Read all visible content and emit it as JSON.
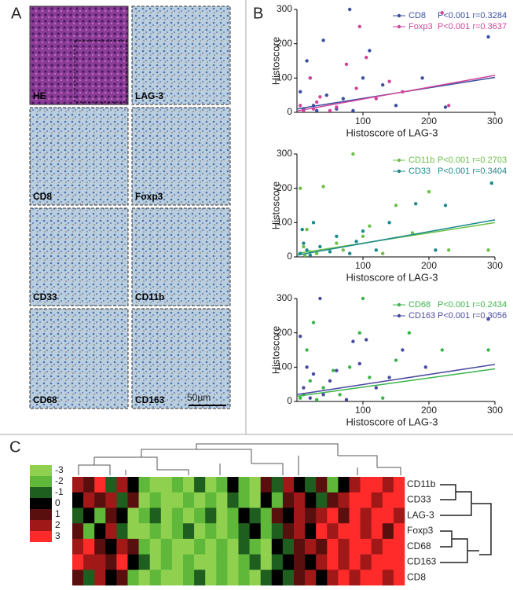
{
  "panel_labels": [
    "A",
    "B",
    "C"
  ],
  "micrographs": {
    "tiles": [
      {
        "label": "HE"
      },
      {
        "label": "LAG-3"
      },
      {
        "label": "CD8"
      },
      {
        "label": "Foxp3"
      },
      {
        "label": "CD33"
      },
      {
        "label": "CD11b"
      },
      {
        "label": "CD68"
      },
      {
        "label": "CD163"
      }
    ],
    "scale_bar": "50μm"
  },
  "chart_data": [
    {
      "type": "scatter",
      "ylabel": "Histoscore",
      "xlabel": "Histoscore of LAG-3",
      "xlim": [
        0,
        300
      ],
      "ylim": [
        0,
        300
      ],
      "xticks": [
        100,
        200,
        300
      ],
      "yticks": [
        0,
        100,
        200,
        300
      ],
      "series": [
        {
          "name": "CD8",
          "stat": "P<0.001 r=0.3284",
          "color": "#3a4fa0",
          "x": [
            5,
            10,
            15,
            20,
            25,
            30,
            40,
            45,
            60,
            70,
            80,
            85,
            100,
            110,
            130,
            150,
            190,
            225,
            290
          ],
          "y": [
            60,
            10,
            150,
            100,
            20,
            5,
            210,
            50,
            10,
            40,
            300,
            5,
            100,
            180,
            80,
            20,
            100,
            15,
            220
          ],
          "fit_y": [
            10,
            102
          ]
        },
        {
          "name": "Foxp3",
          "stat": "P<0.001 r=0.3637",
          "color": "#d0459b",
          "x": [
            5,
            10,
            20,
            25,
            30,
            35,
            50,
            60,
            75,
            90,
            95,
            105,
            120,
            140,
            160,
            220,
            230
          ],
          "y": [
            20,
            5,
            100,
            10,
            30,
            45,
            5,
            15,
            140,
            70,
            250,
            160,
            40,
            90,
            60,
            290,
            20
          ],
          "fit_y": [
            4,
            108
          ]
        }
      ]
    },
    {
      "type": "scatter",
      "ylabel": "Histoscore",
      "xlabel": "Histoscore of LAG-3",
      "xlim": [
        0,
        300
      ],
      "ylim": [
        0,
        300
      ],
      "xticks": [
        100,
        200,
        300
      ],
      "yticks": [
        0,
        100,
        200,
        300
      ],
      "series": [
        {
          "name": "CD11b",
          "stat": "P<0.001 r=0.2703",
          "color": "#6cc04a",
          "x": [
            5,
            10,
            12,
            15,
            20,
            30,
            40,
            60,
            70,
            85,
            100,
            110,
            130,
            150,
            175,
            200,
            230,
            290
          ],
          "y": [
            200,
            30,
            5,
            80,
            15,
            10,
            205,
            40,
            20,
            300,
            60,
            90,
            10,
            150,
            70,
            190,
            20,
            20
          ],
          "fit_y": [
            10,
            100
          ]
        },
        {
          "name": "CD33",
          "stat": "P<0.001 r=0.3404",
          "color": "#1a8a8a",
          "x": [
            5,
            8,
            10,
            15,
            20,
            25,
            35,
            50,
            60,
            80,
            90,
            100,
            120,
            140,
            180,
            210,
            225,
            295
          ],
          "y": [
            10,
            80,
            40,
            20,
            5,
            100,
            30,
            15,
            60,
            10,
            45,
            75,
            20,
            100,
            155,
            20,
            150,
            215
          ],
          "fit_y": [
            5,
            108
          ]
        }
      ]
    },
    {
      "type": "scatter",
      "ylabel": "Histoscore",
      "xlabel": "Histoscore of LAG-3",
      "xlim": [
        0,
        300
      ],
      "ylim": [
        0,
        300
      ],
      "xticks": [
        100,
        200,
        300
      ],
      "yticks": [
        0,
        100,
        200,
        300
      ],
      "series": [
        {
          "name": "CD68",
          "stat": "P<0.001 r=0.2434",
          "color": "#3cb44b",
          "x": [
            5,
            10,
            15,
            20,
            25,
            30,
            40,
            55,
            65,
            80,
            95,
            100,
            110,
            130,
            150,
            170,
            220,
            290
          ],
          "y": [
            10,
            20,
            150,
            60,
            230,
            5,
            40,
            90,
            20,
            100,
            200,
            300,
            70,
            10,
            120,
            200,
            150,
            150
          ],
          "fit_y": [
            15,
            95
          ]
        },
        {
          "name": "CD163",
          "stat": "P<0.001 r=0.3056",
          "color": "#4a4aa0",
          "x": [
            5,
            10,
            15,
            20,
            25,
            35,
            40,
            50,
            60,
            75,
            85,
            95,
            105,
            120,
            140,
            160,
            195,
            290
          ],
          "y": [
            190,
            40,
            100,
            10,
            80,
            300,
            20,
            60,
            90,
            5,
            175,
            110,
            180,
            40,
            70,
            150,
            100,
            240
          ],
          "fit_y": [
            20,
            108
          ]
        }
      ]
    },
    {
      "type": "heatmap",
      "rows": [
        "CD11b",
        "CD33",
        "LAG-3",
        "Foxp3",
        "CD68",
        "CD163",
        "CD8"
      ],
      "values": [
        [
          2,
          1,
          3,
          -1,
          2,
          0,
          -2,
          -3,
          -3,
          -2,
          -3,
          -1,
          -3,
          -2,
          0,
          -2,
          -3,
          1,
          -1,
          2,
          0,
          -1,
          1,
          -2,
          0,
          2,
          3,
          3,
          2,
          3
        ],
        [
          0,
          2,
          1,
          2,
          -1,
          1,
          -3,
          -2,
          -3,
          -3,
          -2,
          -3,
          -2,
          -3,
          -1,
          -2,
          -3,
          0,
          -2,
          1,
          2,
          0,
          -1,
          1,
          2,
          3,
          3,
          2,
          3,
          3
        ],
        [
          -1,
          0,
          -2,
          1,
          0,
          -3,
          -2,
          -1,
          -3,
          -2,
          -3,
          -2,
          -1,
          -3,
          -2,
          0,
          -1,
          -2,
          1,
          0,
          2,
          1,
          2,
          3,
          1,
          3,
          2,
          3,
          3,
          2
        ],
        [
          1,
          -2,
          0,
          2,
          -1,
          -3,
          -3,
          -2,
          -3,
          -2,
          -1,
          -3,
          -2,
          -3,
          -2,
          -1,
          0,
          -2,
          -1,
          1,
          2,
          0,
          3,
          2,
          3,
          3,
          2,
          3,
          1,
          3
        ],
        [
          2,
          3,
          1,
          0,
          2,
          1,
          -2,
          -3,
          -2,
          -3,
          -3,
          -2,
          -3,
          -2,
          -3,
          -1,
          -2,
          -3,
          0,
          -1,
          1,
          2,
          1,
          3,
          2,
          3,
          3,
          2,
          3,
          3
        ],
        [
          3,
          2,
          2,
          1,
          3,
          0,
          -1,
          -3,
          -2,
          -3,
          -2,
          -3,
          -3,
          -2,
          -3,
          -2,
          -1,
          -3,
          -1,
          0,
          1,
          0,
          2,
          3,
          2,
          3,
          2,
          3,
          3,
          3
        ],
        [
          1,
          -1,
          2,
          0,
          1,
          -2,
          -3,
          -2,
          -3,
          -3,
          -2,
          -1,
          -3,
          -2,
          -3,
          -2,
          -3,
          -1,
          0,
          -1,
          1,
          2,
          0,
          2,
          3,
          2,
          3,
          3,
          2,
          3
        ]
      ],
      "scale": {
        "values": [
          -3,
          -2,
          -1,
          0,
          1,
          2,
          3
        ],
        "colors": [
          "#8fd14f",
          "#5fb83a",
          "#1e5e1e",
          "#000000",
          "#5a0f0f",
          "#a01818",
          "#ff2a2a"
        ]
      }
    }
  ]
}
